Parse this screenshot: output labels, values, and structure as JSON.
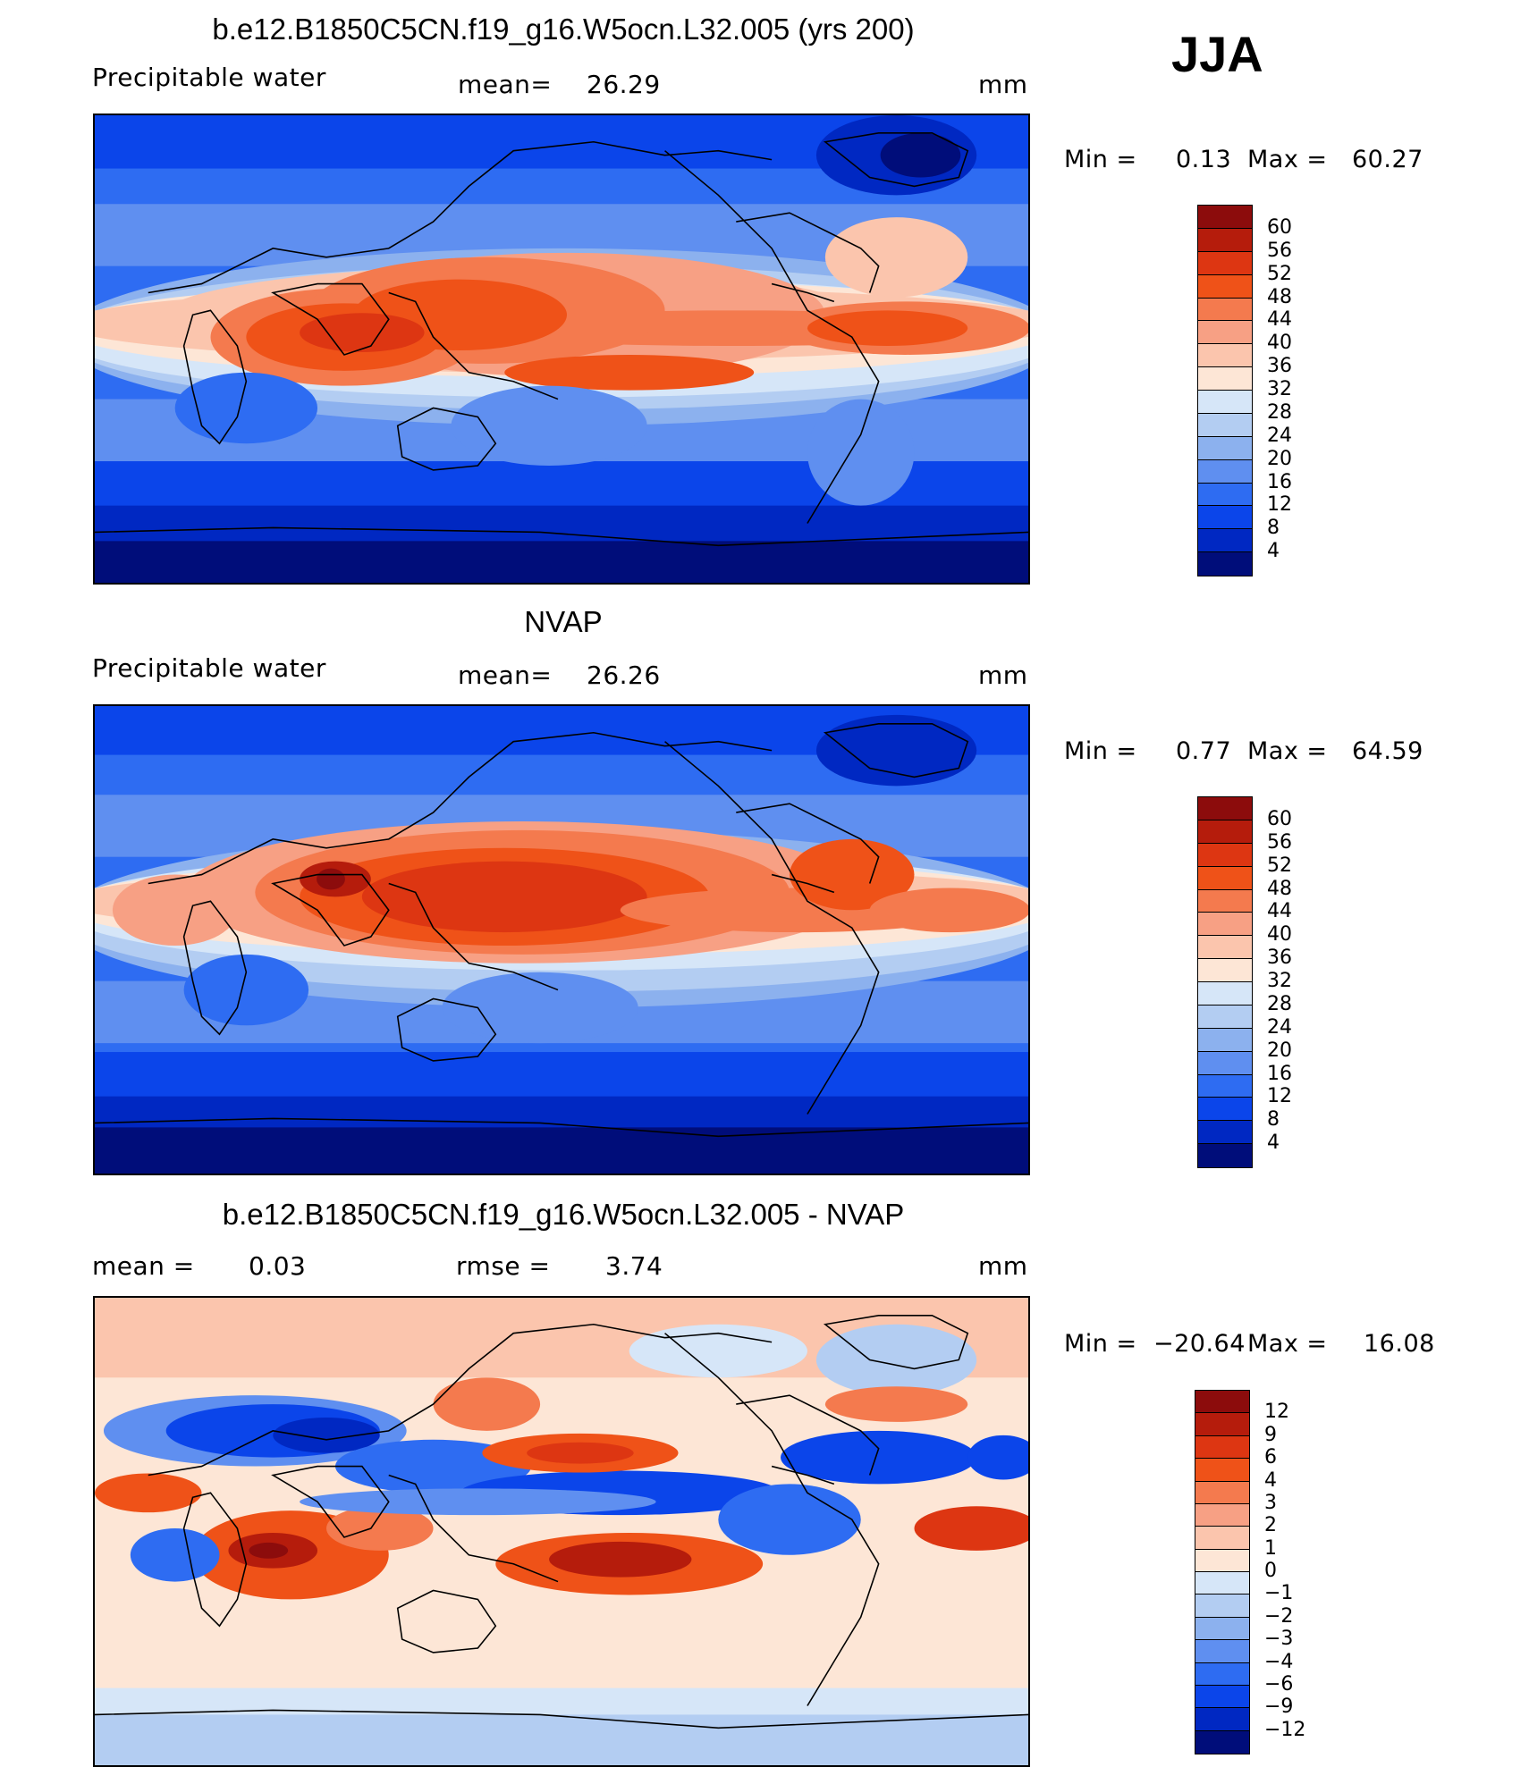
{
  "season": "JJA",
  "panels": [
    {
      "id": "model",
      "title": "b.e12.B1850C5CN.f19_g16.W5ocn.L32.005 (yrs 200)",
      "left_label": "Precipitable  water",
      "stat_label": "mean=",
      "stat_value": "26.29",
      "units": "mm",
      "min_label": "Min  =",
      "min_value": "0.13",
      "max_label": "Max  =",
      "max_value": "60.27",
      "colorbar": {
        "labels": [
          "60",
          "56",
          "52",
          "48",
          "44",
          "40",
          "36",
          "32",
          "28",
          "24",
          "20",
          "16",
          "12",
          "8",
          "4"
        ],
        "colors": [
          "#8c0c0c",
          "#b51c0c",
          "#dd3612",
          "#ef5218",
          "#f47a4e",
          "#f7a084",
          "#fbc5ad",
          "#fde6d6",
          "#d6e6f8",
          "#b3cdf2",
          "#8cb1ee",
          "#5f8ff0",
          "#2e6cf2",
          "#0b45ea",
          "#0028c2",
          "#000d7a"
        ]
      }
    },
    {
      "id": "obs",
      "title": "NVAP",
      "left_label": "Precipitable  water",
      "stat_label": "mean=",
      "stat_value": "26.26",
      "units": "mm",
      "min_label": "Min  =",
      "min_value": "0.77",
      "max_label": "Max  =",
      "max_value": "64.59",
      "colorbar": {
        "labels": [
          "60",
          "56",
          "52",
          "48",
          "44",
          "40",
          "36",
          "32",
          "28",
          "24",
          "20",
          "16",
          "12",
          "8",
          "4"
        ],
        "colors": [
          "#8c0c0c",
          "#b51c0c",
          "#dd3612",
          "#ef5218",
          "#f47a4e",
          "#f7a084",
          "#fbc5ad",
          "#fde6d6",
          "#d6e6f8",
          "#b3cdf2",
          "#8cb1ee",
          "#5f8ff0",
          "#2e6cf2",
          "#0b45ea",
          "#0028c2",
          "#000d7a"
        ]
      }
    },
    {
      "id": "diff",
      "title": "b.e12.B1850C5CN.f19_g16.W5ocn.L32.005 - NVAP",
      "left_label": "mean  =",
      "left_value": "0.03",
      "stat_label": "rmse  =",
      "stat_value": "3.74",
      "units": "mm",
      "min_label": "Min  =",
      "min_value": "−20.64",
      "max_label": "Max  =",
      "max_value": "16.08",
      "colorbar": {
        "labels": [
          "12",
          "9",
          "6",
          "4",
          "3",
          "2",
          "1",
          "0",
          "−1",
          "−2",
          "−3",
          "−4",
          "−6",
          "−9",
          "−12"
        ],
        "colors": [
          "#8c0c0c",
          "#b51c0c",
          "#dd3612",
          "#ef5218",
          "#f47a4e",
          "#f7a084",
          "#fbc5ad",
          "#fde6d6",
          "#d6e6f8",
          "#b3cdf2",
          "#8cb1ee",
          "#5f8ff0",
          "#2e6cf2",
          "#0b45ea",
          "#0028c2",
          "#000d7a"
        ]
      }
    }
  ]
}
